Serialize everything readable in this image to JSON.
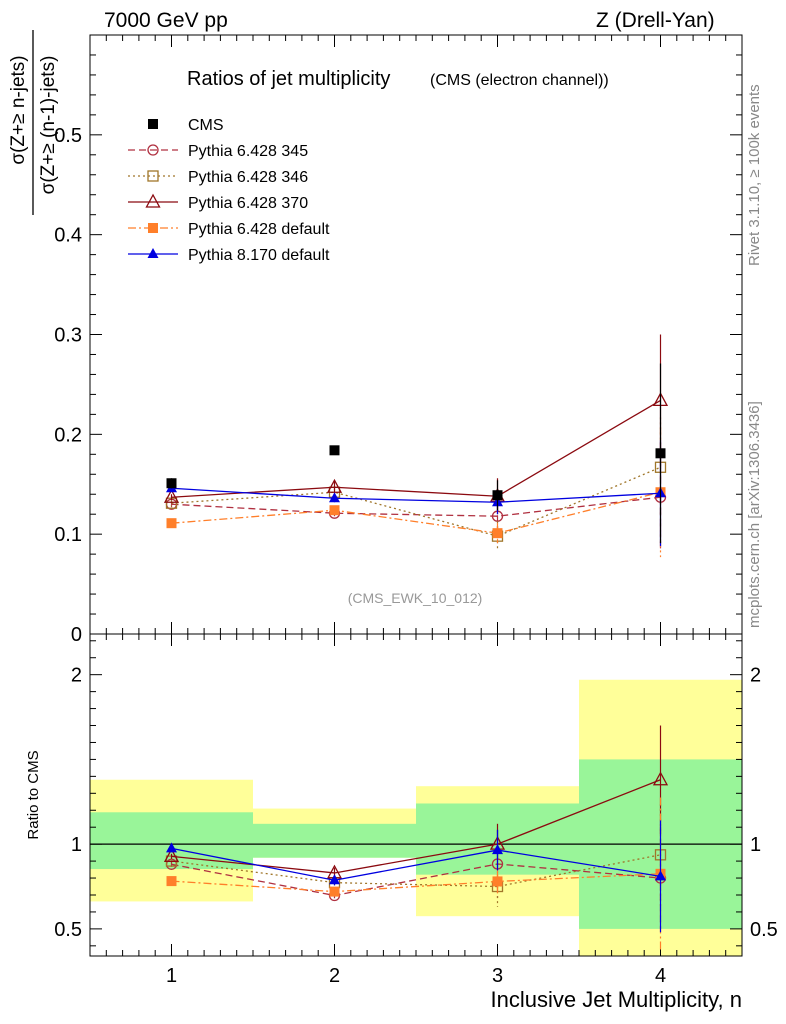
{
  "header": {
    "left": "7000 GeV pp",
    "right": "Z (Drell-Yan)"
  },
  "side_labels": {
    "rivet": "Rivet 3.1.10, ≥ 100k events",
    "mcplots": "mcplots.cern.ch [arXiv:1306.3436]"
  },
  "chart_data": [
    {
      "type": "scatter",
      "panel": "main",
      "title": "Ratios of jet multiplicity",
      "subtitle": "(CMS (electron channel))",
      "ylabel_numerator": "σ(Z+≥ n-jets)",
      "ylabel_denominator": "σ(Z+≥ (n-1)-jets)",
      "annotation": "(CMS_EWK_10_012)",
      "x": [
        1,
        2,
        3,
        4
      ],
      "xlim": [
        0.5,
        4.5
      ],
      "ylim": [
        0,
        0.6
      ],
      "yticks": [
        "0",
        "0.1",
        "0.2",
        "0.3",
        "0.4",
        "0.5"
      ],
      "legend_position": "top-left",
      "series": [
        {
          "name": "CMS",
          "values": [
            0.151,
            0.184,
            0.139,
            0.181
          ],
          "errors": [
            0.005,
            0.004,
            0.015,
            0.09
          ],
          "color": "#000000",
          "marker": "square-filled",
          "line": "none"
        },
        {
          "name": "Pythia 6.428 345",
          "values": [
            0.13,
            0.121,
            0.118,
            0.137
          ],
          "errors": [
            0.003,
            0.004,
            0.012,
            0.055
          ],
          "color": "#b03040",
          "marker": "circle-open",
          "line": "dashed"
        },
        {
          "name": "Pythia 6.428 346",
          "values": [
            0.131,
            0.142,
            0.098,
            0.167
          ],
          "errors": [
            0.003,
            0.004,
            0.015,
            0.05
          ],
          "color": "#a0762a",
          "marker": "square-open",
          "line": "dotted"
        },
        {
          "name": "Pythia 6.428 370",
          "values": [
            0.137,
            0.147,
            0.138,
            0.234
          ],
          "errors": [
            0.003,
            0.006,
            0.018,
            0.066
          ],
          "color": "#8b0a10",
          "marker": "triangle-open",
          "line": "solid"
        },
        {
          "name": "Pythia 6.428 default",
          "values": [
            0.111,
            0.124,
            0.101,
            0.142
          ],
          "errors": [
            0.002,
            0.003,
            0.01,
            0.065
          ],
          "color": "#ff7f2a",
          "marker": "square-filled",
          "line": "dashdot"
        },
        {
          "name": "Pythia 8.170 default",
          "values": [
            0.146,
            0.136,
            0.132,
            0.141
          ],
          "errors": [
            0.003,
            0.004,
            0.012,
            0.053
          ],
          "color": "#0000e0",
          "marker": "triangle-filled",
          "line": "solid"
        }
      ]
    },
    {
      "type": "line",
      "panel": "ratio",
      "ylabel": "Ratio to CMS",
      "xlabel": "Inclusive Jet Multiplicity, n",
      "x": [
        1,
        2,
        3,
        4
      ],
      "xticks": [
        "1",
        "2",
        "3",
        "4"
      ],
      "xlim": [
        0.5,
        4.5
      ],
      "ylim": [
        0.34,
        2.24
      ],
      "yticks": [
        "0.5",
        "1",
        "2"
      ],
      "bands": {
        "bins": [
          [
            0.5,
            1.5
          ],
          [
            1.5,
            2.5
          ],
          [
            2.5,
            3.5
          ],
          [
            3.5,
            4.5
          ]
        ],
        "green": [
          [
            0.853,
            1.188
          ],
          [
            0.92,
            1.12
          ],
          [
            0.82,
            1.24
          ],
          [
            0.5,
            1.5
          ]
        ],
        "yellow": [
          [
            0.662,
            1.38
          ],
          [
            0.92,
            1.21
          ],
          [
            0.575,
            1.342
          ],
          [
            0.34,
            1.97
          ]
        ],
        "colors": {
          "green": "#99f599",
          "yellow": "#ffff99"
        }
      },
      "series": [
        {
          "name": "Pythia 6.428 345",
          "values": [
            0.881,
            0.697,
            0.883,
            0.8
          ],
          "errors": [
            0.015,
            0.025,
            0.2,
            0.3
          ]
        },
        {
          "name": "Pythia 6.428 346",
          "values": [
            0.9,
            0.773,
            0.75,
            0.937
          ],
          "errors": [
            0.015,
            0.025,
            0.12,
            0.3
          ]
        },
        {
          "name": "Pythia 6.428 370",
          "values": [
            0.928,
            0.83,
            1.0,
            1.38
          ],
          "errors": [
            0.015,
            0.03,
            0.12,
            0.32
          ]
        },
        {
          "name": "Pythia 6.428 default",
          "values": [
            0.782,
            0.72,
            0.78,
            0.825
          ],
          "errors": [
            0.01,
            0.02,
            0.07,
            0.45
          ]
        },
        {
          "name": "Pythia 8.170 default",
          "values": [
            0.975,
            0.787,
            0.965,
            0.81
          ],
          "errors": [
            0.015,
            0.03,
            0.12,
            0.33
          ]
        }
      ]
    }
  ]
}
